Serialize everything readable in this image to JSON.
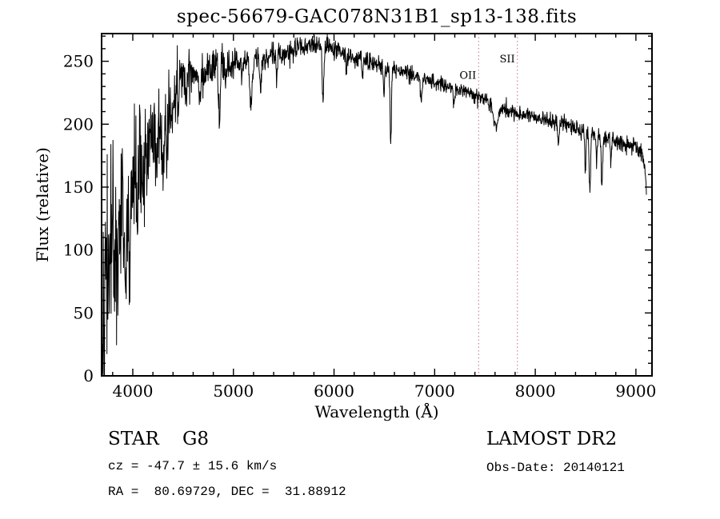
{
  "chart_data": {
    "type": "line",
    "title": "spec-56679-GAC078N31B1_sp13-138.fits",
    "xlabel": "Wavelength (Å)",
    "ylabel": "Flux (relative)",
    "xlim": [
      3690,
      9160
    ],
    "ylim": [
      0,
      272
    ],
    "xticks": [
      4000,
      5000,
      6000,
      7000,
      8000,
      9000
    ],
    "x_minor_step": 200,
    "yticks": [
      0,
      50,
      100,
      150,
      200,
      250
    ],
    "y_minor_step": 10,
    "grid": false,
    "line_color": "#000000",
    "marker_color": "#c4717b",
    "markers": [
      {
        "label": "OII",
        "wavelength": 7437,
        "label_flux": 236
      },
      {
        "label": "SII",
        "wavelength": 7822,
        "label_flux": 249
      }
    ],
    "spectrum": {
      "wl_start": 3692,
      "wl_end": 9105,
      "wl_step": 3,
      "seed": 42,
      "continuum": [
        [
          3692,
          30
        ],
        [
          3710,
          70
        ],
        [
          3730,
          60
        ],
        [
          3760,
          95
        ],
        [
          3800,
          110
        ],
        [
          3850,
          100
        ],
        [
          3900,
          125
        ],
        [
          3950,
          140
        ],
        [
          4000,
          150
        ],
        [
          4050,
          165
        ],
        [
          4100,
          172
        ],
        [
          4150,
          178
        ],
        [
          4200,
          188
        ],
        [
          4250,
          192
        ],
        [
          4300,
          200
        ],
        [
          4350,
          215
        ],
        [
          4400,
          228
        ],
        [
          4450,
          232
        ],
        [
          4500,
          238
        ],
        [
          4600,
          242
        ],
        [
          4700,
          240
        ],
        [
          4800,
          246
        ],
        [
          4900,
          246
        ],
        [
          5000,
          248
        ],
        [
          5100,
          250
        ],
        [
          5200,
          252
        ],
        [
          5300,
          251
        ],
        [
          5400,
          255
        ],
        [
          5500,
          256
        ],
        [
          5600,
          258
        ],
        [
          5700,
          261
        ],
        [
          5800,
          263
        ],
        [
          5900,
          261
        ],
        [
          6000,
          259
        ],
        [
          6100,
          256
        ],
        [
          6200,
          253
        ],
        [
          6300,
          251
        ],
        [
          6400,
          248
        ],
        [
          6500,
          245
        ],
        [
          6600,
          243
        ],
        [
          6700,
          241
        ],
        [
          6800,
          239
        ],
        [
          6900,
          236
        ],
        [
          7000,
          233
        ],
        [
          7100,
          231
        ],
        [
          7200,
          228
        ],
        [
          7300,
          226
        ],
        [
          7400,
          223
        ],
        [
          7500,
          219
        ],
        [
          7600,
          214
        ],
        [
          7700,
          211
        ],
        [
          7800,
          209
        ],
        [
          7900,
          208
        ],
        [
          8000,
          206
        ],
        [
          8100,
          203
        ],
        [
          8200,
          201
        ],
        [
          8300,
          199
        ],
        [
          8400,
          197
        ],
        [
          8500,
          194
        ],
        [
          8600,
          191
        ],
        [
          8700,
          189
        ],
        [
          8800,
          187
        ],
        [
          8900,
          184
        ],
        [
          9000,
          181
        ],
        [
          9060,
          177
        ],
        [
          9085,
          168
        ],
        [
          9105,
          146
        ]
      ],
      "noise_sigma": [
        [
          3692,
          42
        ],
        [
          3800,
          38
        ],
        [
          3900,
          33
        ],
        [
          4000,
          26
        ],
        [
          4200,
          20
        ],
        [
          4400,
          13
        ],
        [
          4600,
          9
        ],
        [
          4800,
          7
        ],
        [
          5000,
          5.5
        ],
        [
          5500,
          4.5
        ],
        [
          6000,
          4
        ],
        [
          6500,
          3.5
        ],
        [
          7000,
          3
        ],
        [
          7500,
          3
        ],
        [
          8000,
          3.2
        ],
        [
          8500,
          3.5
        ],
        [
          9000,
          3.5
        ]
      ],
      "absorption_lines": [
        [
          3934,
          55,
          9
        ],
        [
          3969,
          50,
          9
        ],
        [
          4046,
          25,
          5
        ],
        [
          4101,
          42,
          7
        ],
        [
          4227,
          30,
          6
        ],
        [
          4300,
          45,
          11
        ],
        [
          4340,
          40,
          7
        ],
        [
          4383,
          32,
          6
        ],
        [
          4455,
          22,
          5
        ],
        [
          4530,
          20,
          6
        ],
        [
          4668,
          22,
          6
        ],
        [
          4861,
          52,
          7
        ],
        [
          4920,
          18,
          5
        ],
        [
          5085,
          18,
          5
        ],
        [
          5175,
          40,
          11
        ],
        [
          5270,
          26,
          8
        ],
        [
          5430,
          18,
          6
        ],
        [
          5890,
          42,
          8
        ],
        [
          6122,
          16,
          5
        ],
        [
          6280,
          14,
          6
        ],
        [
          6495,
          20,
          6
        ],
        [
          6563,
          58,
          7
        ],
        [
          6867,
          18,
          8
        ],
        [
          7190,
          12,
          6
        ],
        [
          7605,
          16,
          22
        ],
        [
          8230,
          14,
          6
        ],
        [
          8498,
          28,
          6
        ],
        [
          8542,
          45,
          7
        ],
        [
          8610,
          18,
          5
        ],
        [
          8662,
          40,
          7
        ],
        [
          8750,
          20,
          5
        ]
      ]
    }
  },
  "footer": {
    "left": {
      "class_line": "STAR    G8",
      "cz_line": "cz = -47.7 ± 15.6 km/s",
      "radec_line": "RA =  80.69729, DEC =  31.88912"
    },
    "right": {
      "survey": "LAMOST DR2",
      "obs_date": "Obs-Date: 20140121"
    }
  }
}
